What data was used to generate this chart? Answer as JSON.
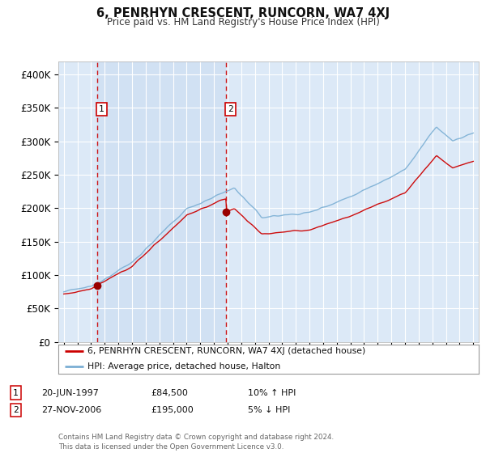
{
  "title": "6, PENRHYN CRESCENT, RUNCORN, WA7 4XJ",
  "subtitle": "Price paid vs. HM Land Registry's House Price Index (HPI)",
  "ylim": [
    0,
    420000
  ],
  "yticks": [
    0,
    50000,
    100000,
    150000,
    200000,
    250000,
    300000,
    350000,
    400000
  ],
  "ytick_labels": [
    "£0",
    "£50K",
    "£100K",
    "£150K",
    "£200K",
    "£250K",
    "£300K",
    "£350K",
    "£400K"
  ],
  "xlim_start": 1994.6,
  "xlim_end": 2025.4,
  "background_color": "#dce9f7",
  "plot_bg_color": "#dce9f7",
  "grid_color": "#ffffff",
  "shade_color": "#c8dcf0",
  "transaction1_date": 1997.47,
  "transaction1_price": 84500,
  "transaction1_label": "1",
  "transaction2_date": 2006.91,
  "transaction2_price": 195000,
  "transaction2_label": "2",
  "legend_line1": "6, PENRHYN CRESCENT, RUNCORN, WA7 4XJ (detached house)",
  "legend_line2": "HPI: Average price, detached house, Halton",
  "table_row1": [
    "1",
    "20-JUN-1997",
    "£84,500",
    "10% ↑ HPI"
  ],
  "table_row2": [
    "2",
    "27-NOV-2006",
    "£195,000",
    "5% ↓ HPI"
  ],
  "footnote": "Contains HM Land Registry data © Crown copyright and database right 2024.\nThis data is licensed under the Open Government Licence v3.0.",
  "red_color": "#cc0000",
  "blue_color": "#7bafd4",
  "marker_color": "#990000"
}
